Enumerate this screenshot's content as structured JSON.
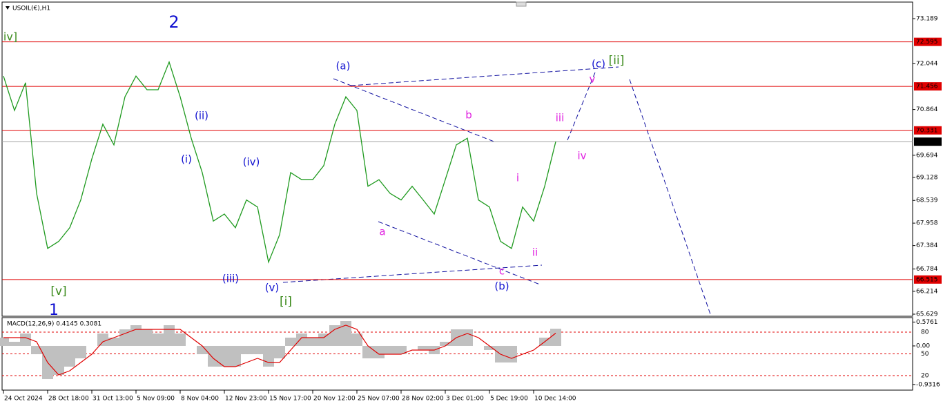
{
  "chart_data": [
    {
      "type": "line",
      "title": "USOIL(€),H1",
      "categories": [
        "24 Oct 2024",
        null,
        null,
        null,
        "28 Oct 18:00",
        null,
        null,
        null,
        "31 Oct 13:00",
        null,
        null,
        null,
        "5 Nov 09:00",
        null,
        null,
        null,
        "8 Nov 04:00",
        null,
        null,
        null,
        "12 Nov 23:00",
        null,
        null,
        null,
        "15 Nov 17:00",
        null,
        null,
        null,
        "20 Nov 12:00",
        null,
        null,
        null,
        "25 Nov 07:00",
        null,
        null,
        null,
        "28 Nov 02:00",
        null,
        null,
        null,
        "3 Dec 01:00",
        null,
        null,
        null,
        "5 Dec 19:00",
        null,
        null,
        null,
        "10 Dec 14:00",
        null,
        null
      ],
      "values": [
        71.72,
        70.84,
        71.55,
        68.72,
        67.31,
        67.49,
        67.84,
        68.55,
        69.6,
        70.49,
        69.96,
        71.19,
        71.72,
        71.37,
        71.37,
        72.08,
        71.19,
        70.13,
        69.25,
        68.01,
        68.19,
        67.84,
        68.55,
        68.37,
        66.96,
        67.66,
        69.25,
        69.07,
        69.07,
        69.43,
        70.49,
        71.19,
        70.84,
        68.9,
        69.07,
        68.72,
        68.55,
        68.9,
        68.55,
        68.19,
        69.07,
        69.96,
        70.13,
        68.55,
        68.37,
        67.49,
        67.31,
        68.37,
        68.01,
        68.9,
        70.042
      ],
      "color": "#1f9a1f",
      "ylim": [
        65.576,
        73.595
      ],
      "yticks": [
        73.189,
        72.044,
        70.864,
        69.694,
        69.128,
        68.539,
        67.958,
        67.384,
        66.784,
        66.214,
        65.629
      ],
      "levels": [
        72.595,
        71.456,
        70.331,
        66.515
      ],
      "level_color": "#e00000",
      "last_price": 70.042,
      "annotations": [
        {
          "text": "2",
          "color": "#1010d0"
        },
        {
          "text": "1",
          "color": "#1010d0"
        },
        {
          "text": "iv]",
          "color": "#3a8a1a"
        },
        {
          "text": "[v]",
          "color": "#3a8a1a"
        },
        {
          "text": "[i]",
          "color": "#3a8a1a"
        },
        {
          "text": "[ii]",
          "color": "#3a8a1a"
        },
        {
          "text": "(a)",
          "color": "#1010d0"
        },
        {
          "text": "(b)",
          "color": "#1010d0"
        },
        {
          "text": "(c)",
          "color": "#1010d0"
        },
        {
          "text": "(i)",
          "color": "#1010d0"
        },
        {
          "text": "(ii)",
          "color": "#1010d0"
        },
        {
          "text": "(iii)",
          "color": "#1010d0"
        },
        {
          "text": "(iv)",
          "color": "#1010d0"
        },
        {
          "text": "(v)",
          "color": "#1010d0"
        },
        {
          "text": "a",
          "color": "#e020e0"
        },
        {
          "text": "b",
          "color": "#e020e0"
        },
        {
          "text": "c",
          "color": "#e020e0"
        },
        {
          "text": "i",
          "color": "#e020e0"
        },
        {
          "text": "ii",
          "color": "#e020e0"
        },
        {
          "text": "iii",
          "color": "#e020e0"
        },
        {
          "text": "iv",
          "color": "#e020e0"
        },
        {
          "text": "v",
          "color": "#e020e0"
        }
      ]
    },
    {
      "type": "macd",
      "title": "MACD(12,26,9) 0.4145 0.3081",
      "series": [
        {
          "color": "#c0c0c0",
          "values": [
            0.2,
            0.1,
            0.3,
            -0.2,
            -0.8,
            -0.7,
            -0.5,
            -0.3,
            0.0,
            0.3,
            0.2,
            0.4,
            0.5,
            0.4,
            0.3,
            0.5,
            0.3,
            0.0,
            -0.2,
            -0.5,
            -0.5,
            -0.5,
            -0.2,
            -0.2,
            -0.5,
            -0.3,
            0.2,
            0.3,
            0.2,
            0.3,
            0.5,
            0.6,
            0.3,
            -0.3,
            -0.3,
            -0.2,
            -0.2,
            0.0,
            -0.1,
            -0.2,
            0.1,
            0.4,
            0.4,
            0.0,
            -0.1,
            -0.4,
            -0.4,
            0.0,
            0.0,
            0.2,
            0.4145
          ]
        },
        {
          "color": "#e00000",
          "values": [
            0.2,
            0.2,
            0.2,
            0.1,
            -0.4,
            -0.7,
            -0.6,
            -0.4,
            -0.2,
            0.1,
            0.2,
            0.3,
            0.4,
            0.4,
            0.4,
            0.4,
            0.4,
            0.2,
            0.0,
            -0.3,
            -0.5,
            -0.5,
            -0.4,
            -0.3,
            -0.4,
            -0.4,
            -0.1,
            0.2,
            0.2,
            0.2,
            0.4,
            0.5,
            0.4,
            0.0,
            -0.2,
            -0.2,
            -0.2,
            -0.1,
            -0.1,
            -0.1,
            0.0,
            0.2,
            0.3,
            0.2,
            0.0,
            -0.2,
            -0.3,
            -0.2,
            -0.1,
            0.1,
            0.3081
          ]
        }
      ],
      "ylim": [
        -1.067,
        0.683
      ],
      "yticks": [
        0.5761,
        {
          "value": 0,
          "label": "0.00"
        },
        -0.9316
      ],
      "y2lim": [
        0,
        100
      ],
      "y2ticks": [
        80,
        50,
        20
      ],
      "y2_grid_color": "#e00000"
    }
  ]
}
